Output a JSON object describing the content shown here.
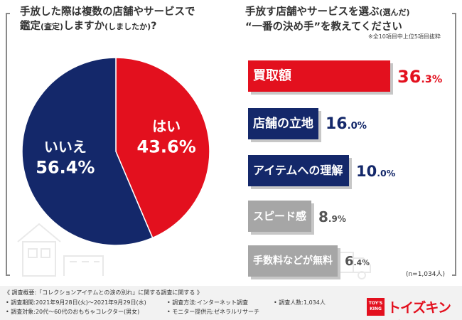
{
  "left_question": {
    "line1": "手放した際は複数の店舗やサービスで",
    "line2_main": "鑑定",
    "line2_paren1": "(査定)",
    "line2_mid": "しますか",
    "line2_paren2": "(しましたか)",
    "line2_end": "?"
  },
  "right_question": {
    "line1_main": "手放す店舗やサービスを選ぶ",
    "line1_paren": "(選んだ)",
    "line2": "“一番の決め手”を教えてください",
    "note": "※全10項目中上位5項目抜粋"
  },
  "colors": {
    "yes": "#e3101e",
    "no": "#14286a",
    "gray": "#a6a6a6",
    "shadow": "#c7c7c7"
  },
  "chart_data": [
    {
      "type": "pie",
      "slices": [
        {
          "label": "はい",
          "value": 43.6,
          "display": "43.6%",
          "color": "#e3101e"
        },
        {
          "label": "いいえ",
          "value": 56.4,
          "display": "56.4%",
          "color": "#14286a"
        }
      ]
    },
    {
      "type": "bar",
      "orientation": "horizontal",
      "categories": [
        "買取額",
        "店舗の立地",
        "アイテムへの理解",
        "スピード感",
        "手数料などが無料"
      ],
      "values": [
        36.3,
        16.0,
        10.0,
        8.9,
        6.4
      ],
      "value_labels": [
        {
          "int": "36",
          "dec": ".3%"
        },
        {
          "int": "16",
          "dec": ".0%"
        },
        {
          "int": "10",
          "dec": ".0%"
        },
        {
          "int": "8",
          "dec": ".9%"
        },
        {
          "int": "6",
          "dec": ".4%"
        }
      ],
      "colors": [
        "#e3101e",
        "#14286a",
        "#14286a",
        "#a6a6a6",
        "#a6a6a6"
      ],
      "value_colors": [
        "#e3101e",
        "#14286a",
        "#14286a",
        "#555555",
        "#555555"
      ]
    }
  ],
  "sample_note": "(n=1,034人)",
  "footer": {
    "title": "《 調査概要:「コレクションアイテムとの涙の別れ」に関する調査に関する 》",
    "period": "• 調査期間:2021年9月28日(火)〜2021年9月29日(水)",
    "method": "• 調査方法:インターネット調査",
    "count": "• 調査人数:1,034人",
    "target": "• 調査対象:20代〜60代のおもちゃコレクター(男女)",
    "provider": "• モニター提供元:ゼネラルリサーチ"
  },
  "logo": {
    "box_line1": "TOY'S",
    "box_line2": "KING",
    "text": "トイズキング"
  }
}
